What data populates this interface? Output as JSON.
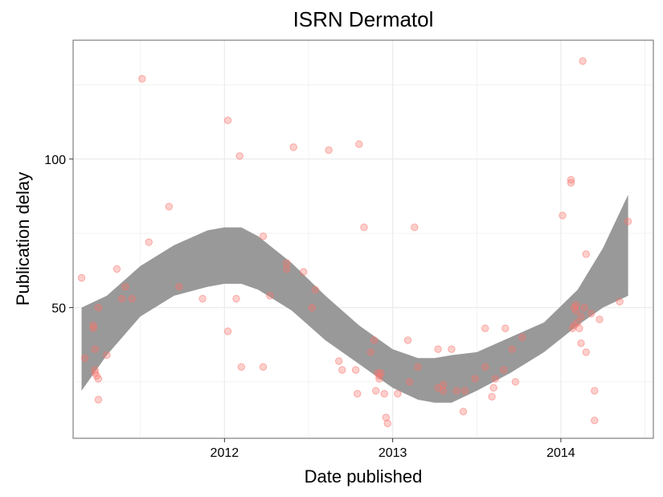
{
  "chart_data": {
    "type": "scatter",
    "title": "ISRN Dermatol",
    "xlabel": "Date published",
    "ylabel": "Publication delay",
    "xlim": [
      2011.1,
      2014.55
    ],
    "ylim": [
      6,
      140
    ],
    "x_ticks": [
      2012,
      2013,
      2014
    ],
    "x_tick_labels": [
      "2012",
      "2013",
      "2014"
    ],
    "y_ticks": [
      50,
      100
    ],
    "y_tick_labels": [
      "50",
      "100"
    ],
    "grid": true,
    "legend": "none",
    "colors": {
      "points": "#f8766d",
      "band": "#999999",
      "panel_border": "#7f7f7f",
      "grid": "#ebebeb"
    },
    "series": [
      {
        "values": [
          [
            2011.15,
            60
          ],
          [
            2011.17,
            33
          ],
          [
            2011.22,
            44
          ],
          [
            2011.22,
            43
          ],
          [
            2011.23,
            36
          ],
          [
            2011.23,
            29
          ],
          [
            2011.23,
            28
          ],
          [
            2011.24,
            27
          ],
          [
            2011.25,
            50
          ],
          [
            2011.25,
            26
          ],
          [
            2011.25,
            19
          ],
          [
            2011.3,
            34
          ],
          [
            2011.36,
            63
          ],
          [
            2011.39,
            53
          ],
          [
            2011.41,
            57
          ],
          [
            2011.45,
            53
          ],
          [
            2011.51,
            127
          ],
          [
            2011.55,
            72
          ],
          [
            2011.67,
            84
          ],
          [
            2011.73,
            57
          ],
          [
            2011.87,
            53
          ],
          [
            2012.02,
            113
          ],
          [
            2012.02,
            42
          ],
          [
            2012.07,
            53
          ],
          [
            2012.09,
            101
          ],
          [
            2012.1,
            30
          ],
          [
            2012.23,
            30
          ],
          [
            2012.23,
            74
          ],
          [
            2012.27,
            54
          ],
          [
            2012.37,
            65
          ],
          [
            2012.37,
            63
          ],
          [
            2012.41,
            104
          ],
          [
            2012.47,
            62
          ],
          [
            2012.52,
            50
          ],
          [
            2012.54,
            56
          ],
          [
            2012.62,
            103
          ],
          [
            2012.68,
            32
          ],
          [
            2012.7,
            29
          ],
          [
            2012.78,
            29
          ],
          [
            2012.79,
            21
          ],
          [
            2012.8,
            105
          ],
          [
            2012.83,
            77
          ],
          [
            2012.87,
            35
          ],
          [
            2012.89,
            39
          ],
          [
            2012.9,
            22
          ],
          [
            2012.91,
            28
          ],
          [
            2012.92,
            27
          ],
          [
            2012.92,
            26
          ],
          [
            2012.93,
            28
          ],
          [
            2012.95,
            21
          ],
          [
            2012.96,
            13
          ],
          [
            2012.97,
            11
          ],
          [
            2013.03,
            21
          ],
          [
            2013.09,
            39
          ],
          [
            2013.1,
            25
          ],
          [
            2013.13,
            77
          ],
          [
            2013.15,
            30
          ],
          [
            2013.27,
            36
          ],
          [
            2013.27,
            23
          ],
          [
            2013.3,
            24
          ],
          [
            2013.3,
            22
          ],
          [
            2013.35,
            36
          ],
          [
            2013.38,
            22
          ],
          [
            2013.42,
            15
          ],
          [
            2013.43,
            22
          ],
          [
            2013.49,
            26
          ],
          [
            2013.55,
            30
          ],
          [
            2013.55,
            43
          ],
          [
            2013.59,
            20
          ],
          [
            2013.6,
            23
          ],
          [
            2013.61,
            26
          ],
          [
            2013.66,
            29
          ],
          [
            2013.67,
            43
          ],
          [
            2013.71,
            36
          ],
          [
            2013.73,
            25
          ],
          [
            2013.77,
            40
          ],
          [
            2014.01,
            81
          ],
          [
            2014.06,
            92
          ],
          [
            2014.06,
            93
          ],
          [
            2014.07,
            43
          ],
          [
            2014.08,
            44
          ],
          [
            2014.08,
            50
          ],
          [
            2014.09,
            51
          ],
          [
            2014.09,
            49
          ],
          [
            2014.1,
            45
          ],
          [
            2014.11,
            43
          ],
          [
            2014.12,
            47
          ],
          [
            2014.12,
            38
          ],
          [
            2014.13,
            133
          ],
          [
            2014.14,
            50
          ],
          [
            2014.15,
            68
          ],
          [
            2014.15,
            35
          ],
          [
            2014.18,
            48
          ],
          [
            2014.2,
            12
          ],
          [
            2014.2,
            22
          ],
          [
            2014.23,
            46
          ],
          [
            2014.35,
            52
          ],
          [
            2014.4,
            79
          ]
        ]
      }
    ],
    "smooth_band": {
      "x": [
        2011.15,
        2011.3,
        2011.5,
        2011.7,
        2011.9,
        2012.0,
        2012.1,
        2012.2,
        2012.4,
        2012.6,
        2012.8,
        2013.0,
        2013.15,
        2013.25,
        2013.35,
        2013.5,
        2013.7,
        2013.9,
        2014.1,
        2014.25,
        2014.4
      ],
      "lower": [
        22,
        34,
        47,
        54,
        57,
        58,
        58,
        56,
        49,
        39,
        31,
        23,
        19,
        18,
        18,
        22,
        28,
        35,
        44,
        50,
        54
      ],
      "upper": [
        50,
        54,
        64,
        71,
        76,
        77,
        77,
        74,
        65,
        54,
        44,
        36,
        33,
        33,
        34,
        35,
        40,
        45,
        56,
        70,
        88
      ]
    }
  }
}
